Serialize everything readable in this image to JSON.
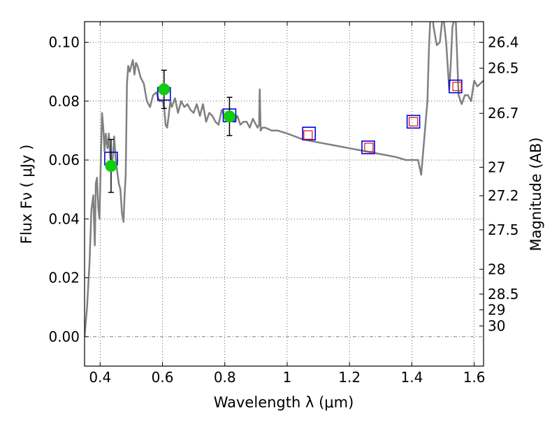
{
  "chart_data": {
    "type": "scatter",
    "title": "",
    "xlabel": "Wavelength  λ (μm)",
    "ylabel": "Flux  Fν  ( μJy )",
    "y2label": "Magnitude (AB)",
    "xlim": [
      0.35,
      1.63
    ],
    "ylim": [
      -0.01,
      0.107
    ],
    "grid": true,
    "colors": {
      "sed_line": "#808080",
      "model_box": "#0000dd",
      "observed_box": "#dd2222",
      "detection_point": "#11cc11",
      "error_bar": "#000000",
      "zero_line": "#555555"
    },
    "x_ticks": [
      {
        "value": 0.4,
        "label": "0.4"
      },
      {
        "value": 0.6,
        "label": "0.6"
      },
      {
        "value": 0.8,
        "label": "0.8"
      },
      {
        "value": 1.0,
        "label": "1"
      },
      {
        "value": 1.2,
        "label": "1.2"
      },
      {
        "value": 1.4,
        "label": "1.4"
      },
      {
        "value": 1.6,
        "label": "1.6"
      }
    ],
    "y_ticks": [
      {
        "value": 0.0,
        "label": "0.00"
      },
      {
        "value": 0.02,
        "label": "0.02"
      },
      {
        "value": 0.04,
        "label": "0.04"
      },
      {
        "value": 0.06,
        "label": "0.06"
      },
      {
        "value": 0.08,
        "label": "0.08"
      },
      {
        "value": 0.1,
        "label": "0.10"
      }
    ],
    "y2_ticks": [
      {
        "mag": 26.4,
        "label": "26.4"
      },
      {
        "mag": 26.5,
        "label": "26.5"
      },
      {
        "mag": 26.7,
        "label": "26.7"
      },
      {
        "mag": 27,
        "label": "27"
      },
      {
        "mag": 27.2,
        "label": "27.2"
      },
      {
        "mag": 27.5,
        "label": "27.5"
      },
      {
        "mag": 28,
        "label": "28"
      },
      {
        "mag": 28.5,
        "label": "28.5"
      },
      {
        "mag": 29,
        "label": "29"
      },
      {
        "mag": 30,
        "label": "30"
      }
    ],
    "series": [
      {
        "kind": "sed_line",
        "x": [
          0.35,
          0.358,
          0.366,
          0.372,
          0.378,
          0.383,
          0.386,
          0.39,
          0.394,
          0.398,
          0.402,
          0.406,
          0.41,
          0.414,
          0.418,
          0.421,
          0.424,
          0.428,
          0.432,
          0.436,
          0.44,
          0.445,
          0.45,
          0.455,
          0.46,
          0.465,
          0.47,
          0.475,
          0.478,
          0.482,
          0.486,
          0.49,
          0.495,
          0.5,
          0.505,
          0.51,
          0.515,
          0.52,
          0.525,
          0.53,
          0.54,
          0.55,
          0.56,
          0.57,
          0.58,
          0.59,
          0.6,
          0.605,
          0.61,
          0.615,
          0.62,
          0.625,
          0.63,
          0.64,
          0.65,
          0.66,
          0.67,
          0.68,
          0.69,
          0.7,
          0.71,
          0.72,
          0.73,
          0.74,
          0.75,
          0.76,
          0.77,
          0.78,
          0.79,
          0.8,
          0.81,
          0.82,
          0.83,
          0.84,
          0.85,
          0.86,
          0.87,
          0.88,
          0.89,
          0.9,
          0.905,
          0.91,
          0.912,
          0.915,
          0.92,
          0.93,
          0.95,
          0.97,
          1.0,
          1.05,
          1.1,
          1.15,
          1.2,
          1.25,
          1.3,
          1.35,
          1.38,
          1.4,
          1.42,
          1.43,
          1.45,
          1.455,
          1.46,
          1.465,
          1.47,
          1.48,
          1.49,
          1.5,
          1.51,
          1.52,
          1.525,
          1.53,
          1.54,
          1.55,
          1.56,
          1.57,
          1.58,
          1.59,
          1.6,
          1.61,
          1.62,
          1.63
        ],
        "y": [
          0.0,
          0.01,
          0.025,
          0.043,
          0.048,
          0.031,
          0.052,
          0.054,
          0.044,
          0.04,
          0.059,
          0.076,
          0.071,
          0.063,
          0.069,
          0.066,
          0.064,
          0.069,
          0.061,
          0.058,
          0.06,
          0.068,
          0.06,
          0.056,
          0.052,
          0.05,
          0.042,
          0.039,
          0.047,
          0.055,
          0.086,
          0.092,
          0.09,
          0.092,
          0.094,
          0.089,
          0.093,
          0.092,
          0.09,
          0.088,
          0.086,
          0.08,
          0.078,
          0.082,
          0.083,
          0.08,
          0.08,
          0.078,
          0.072,
          0.071,
          0.075,
          0.08,
          0.078,
          0.081,
          0.076,
          0.08,
          0.078,
          0.079,
          0.077,
          0.076,
          0.079,
          0.075,
          0.079,
          0.073,
          0.076,
          0.075,
          0.073,
          0.072,
          0.077,
          0.075,
          0.076,
          0.074,
          0.073,
          0.075,
          0.072,
          0.073,
          0.073,
          0.071,
          0.074,
          0.072,
          0.071,
          0.072,
          0.084,
          0.07,
          0.071,
          0.071,
          0.07,
          0.07,
          0.069,
          0.067,
          0.066,
          0.065,
          0.064,
          0.063,
          0.062,
          0.061,
          0.06,
          0.06,
          0.06,
          0.055,
          0.08,
          0.098,
          0.11,
          0.11,
          0.105,
          0.099,
          0.1,
          0.11,
          0.1,
          0.084,
          0.093,
          0.105,
          0.11,
          0.082,
          0.079,
          0.082,
          0.082,
          0.08,
          0.087,
          0.085,
          0.086,
          0.087
        ]
      },
      {
        "kind": "model_box",
        "x": [
          0.435,
          0.605,
          0.815,
          1.07,
          1.26,
          1.405,
          1.54
        ],
        "y": [
          0.0605,
          0.0825,
          0.0752,
          0.069,
          0.0643,
          0.073,
          0.085
        ]
      },
      {
        "kind": "observed_box",
        "x": [
          1.067,
          1.262,
          1.405,
          1.545
        ],
        "y": [
          0.0685,
          0.0643,
          0.073,
          0.085
        ]
      },
      {
        "kind": "detection_point",
        "x": [
          0.435,
          0.605,
          0.815
        ],
        "y": [
          0.058,
          0.084,
          0.0748
        ],
        "yerr": [
          0.009,
          0.0065,
          0.0065
        ]
      }
    ]
  }
}
